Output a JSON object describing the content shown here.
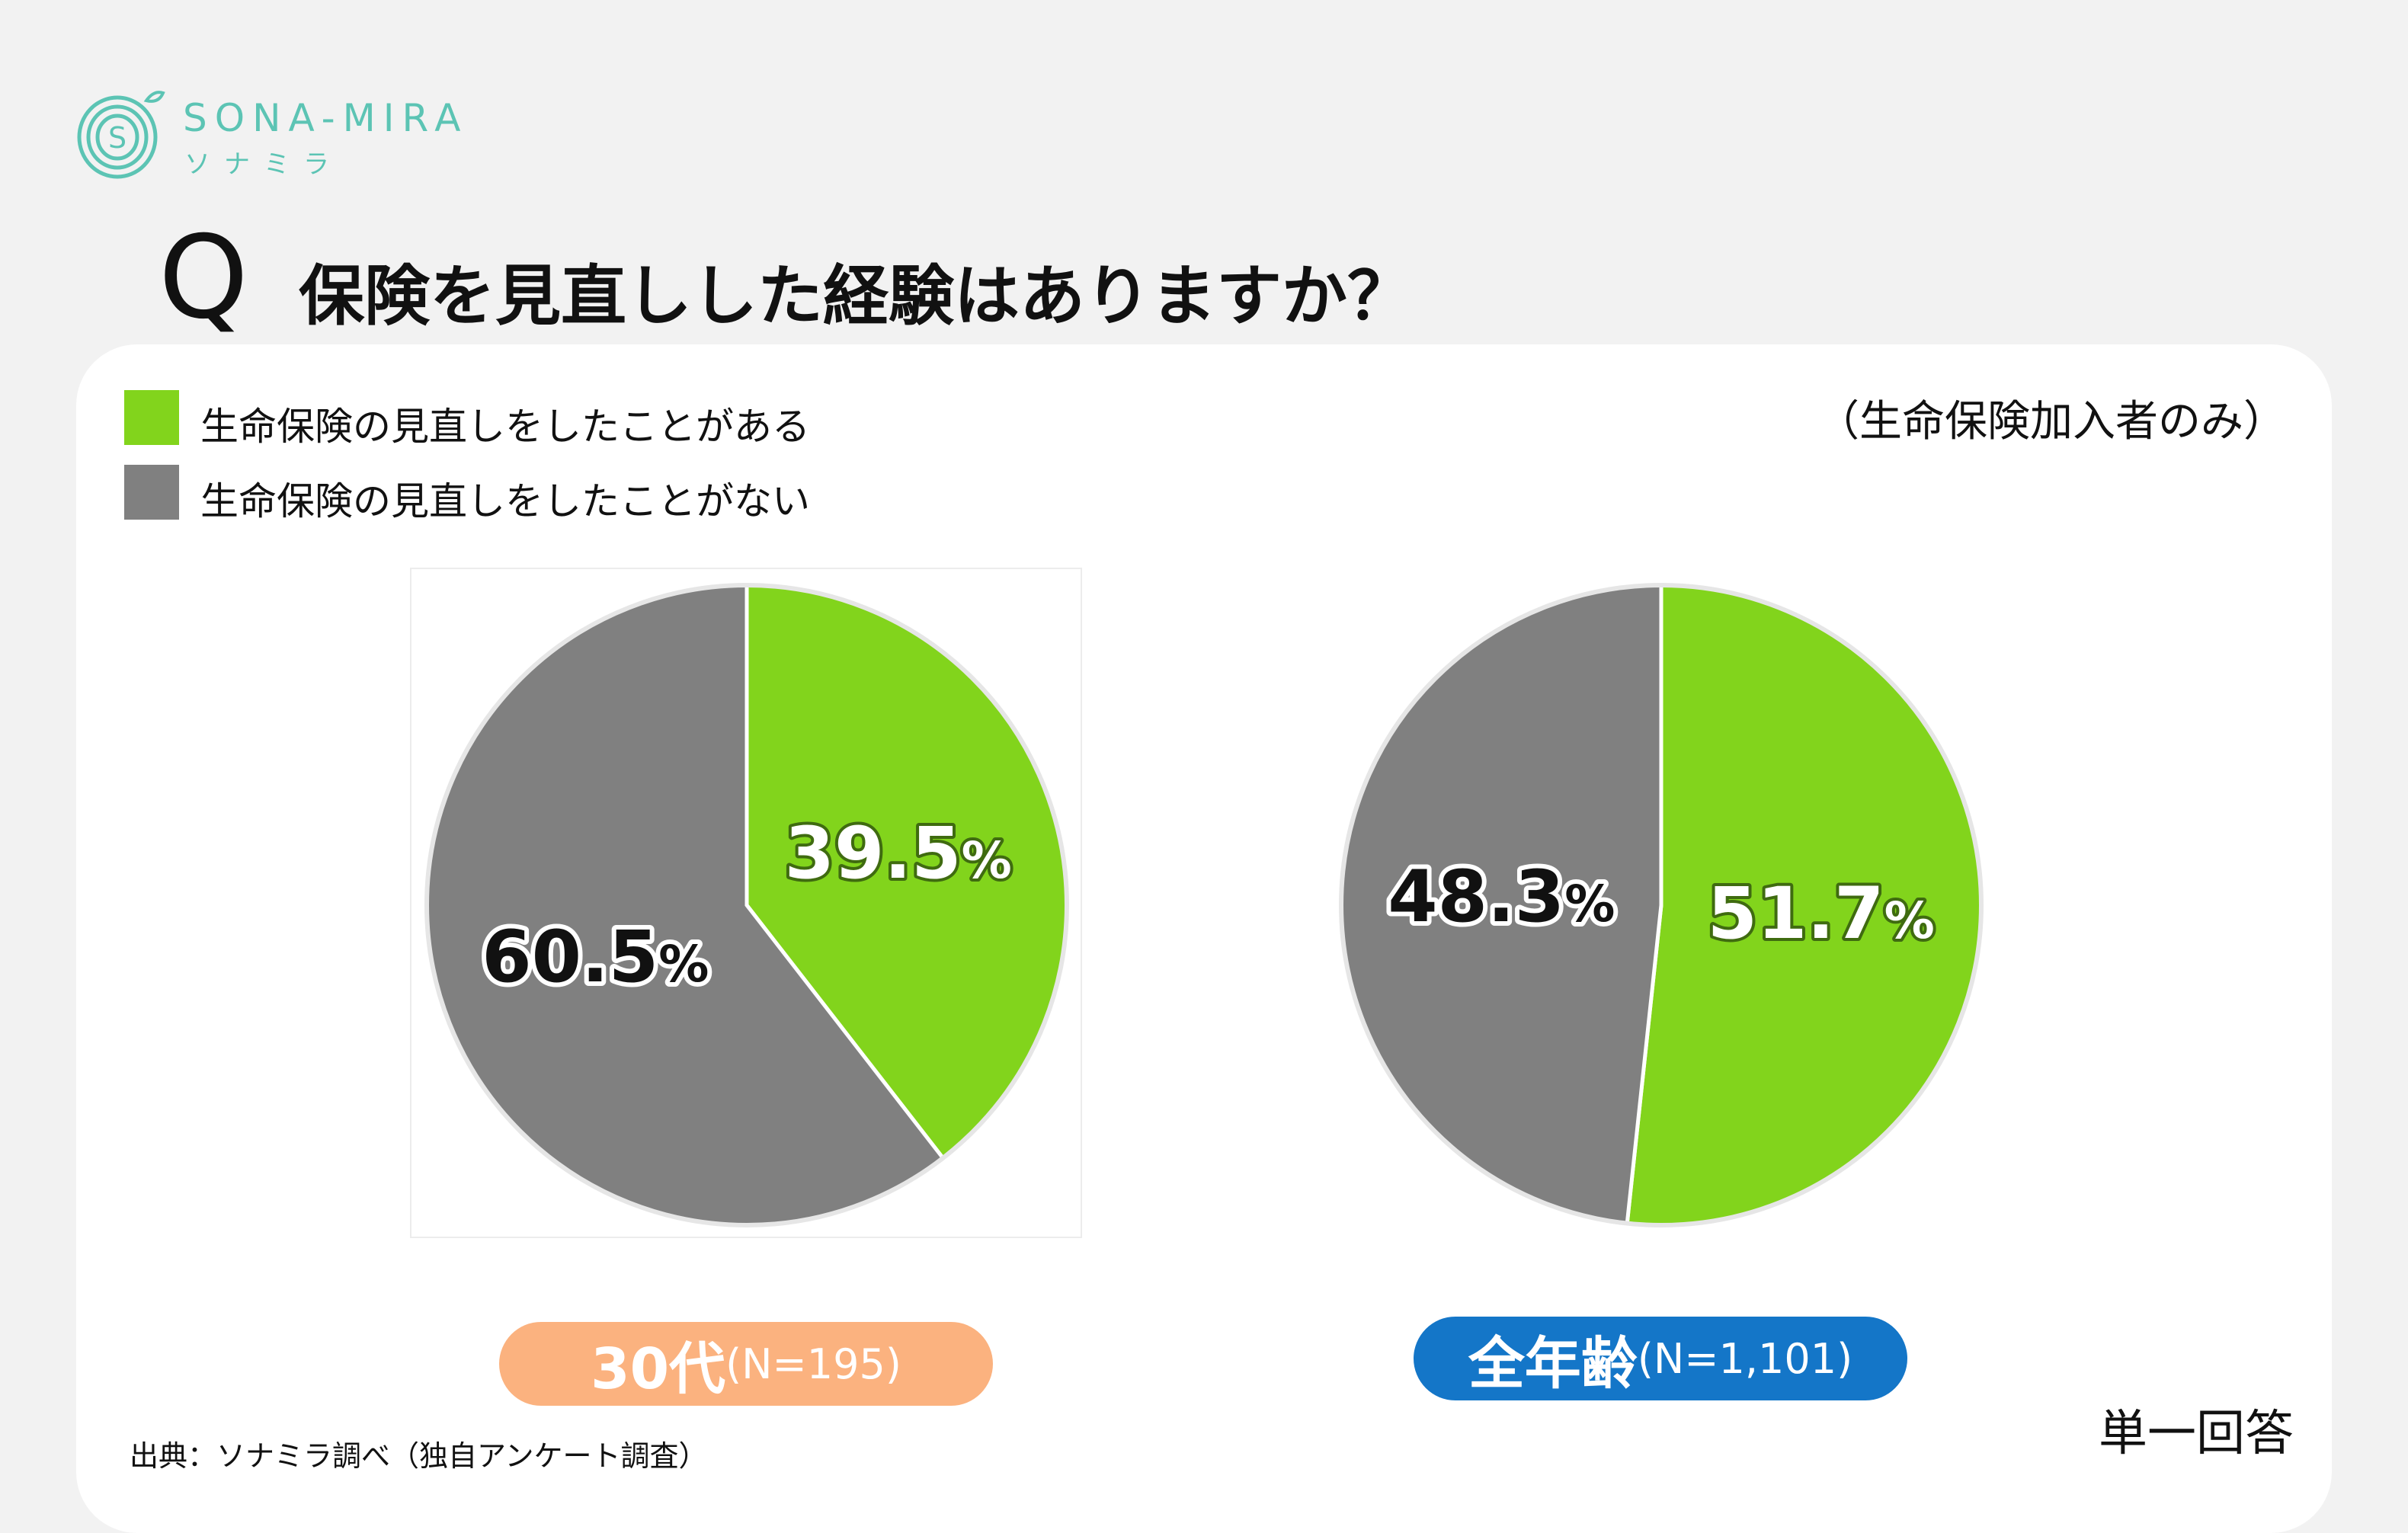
{
  "logo": {
    "text": "SONA-MIRA",
    "sub": "ソナミラ",
    "color": "#5cc4b4"
  },
  "question": {
    "letter": "Q",
    "text": "保険を見直しした経験はありますか？"
  },
  "legend": [
    {
      "label": "生命保険の見直しをしたことがある",
      "color": "#82d41c"
    },
    {
      "label": "生命保険の見直しをしたことがない",
      "color": "#808080"
    }
  ],
  "note": "（生命保険加入者のみ）",
  "chart_data": [
    {
      "type": "pie",
      "group_label": "30代",
      "n_label": "(N=195)",
      "slices": [
        {
          "name": "生命保険の見直しをしたことがある",
          "value": 39.5,
          "color": "#82d41c",
          "label": "39.5",
          "unit": "%"
        },
        {
          "name": "生命保険の見直しをしたことがない",
          "value": 60.5,
          "color": "#808080",
          "label": "60.5",
          "unit": "%"
        }
      ],
      "pill_color": "#fbb27f"
    },
    {
      "type": "pie",
      "group_label": "全年齢",
      "n_label": "(N=1,101)",
      "slices": [
        {
          "name": "生命保険の見直しをしたことがある",
          "value": 51.7,
          "color": "#82d41c",
          "label": "51.7",
          "unit": "%"
        },
        {
          "name": "生命保険の見直しをしたことがない",
          "value": 48.3,
          "color": "#808080",
          "label": "48.3",
          "unit": "%"
        }
      ],
      "pill_color": "#1476c8"
    }
  ],
  "source": "出典：ソナミラ調べ（独自アンケート調査）",
  "answer_type": "単一回答"
}
